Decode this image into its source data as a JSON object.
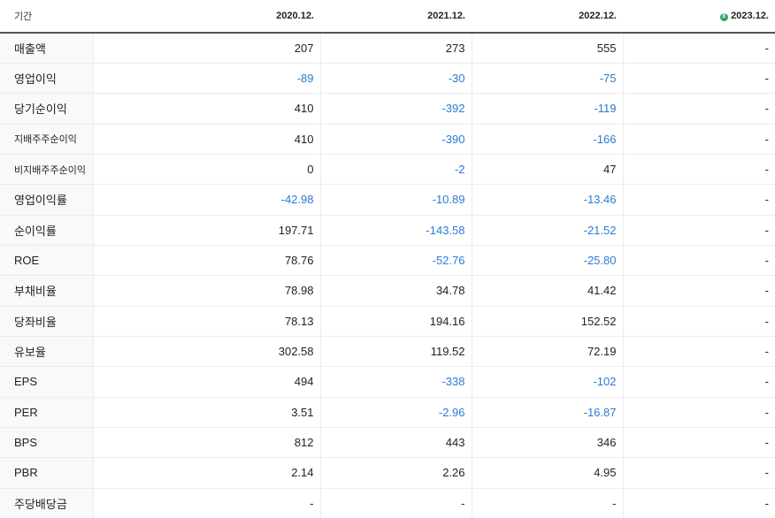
{
  "header": {
    "label": "기간",
    "periods": [
      "2020.12.",
      "2021.12.",
      "2022.12.",
      "2023.12."
    ],
    "estimate_icon_letter": "E",
    "estimate_icon_color": "#2aa86a"
  },
  "colors": {
    "negative": "#2b7bd3",
    "text": "#222222",
    "label_bg": "#f9f9f9"
  },
  "rows": [
    {
      "label": "매출액",
      "values": [
        "207",
        "273",
        "555",
        "-"
      ]
    },
    {
      "label": "영업이익",
      "values": [
        "-89",
        "-30",
        "-75",
        "-"
      ]
    },
    {
      "label": "당기순이익",
      "values": [
        "410",
        "-392",
        "-119",
        "-"
      ]
    },
    {
      "label": "지배주주순이익",
      "values": [
        "410",
        "-390",
        "-166",
        "-"
      ]
    },
    {
      "label": "비지배주주순이익",
      "values": [
        "0",
        "-2",
        "47",
        "-"
      ]
    },
    {
      "label": "영업이익률",
      "values": [
        "-42.98",
        "-10.89",
        "-13.46",
        "-"
      ]
    },
    {
      "label": "순이익률",
      "values": [
        "197.71",
        "-143.58",
        "-21.52",
        "-"
      ]
    },
    {
      "label": "ROE",
      "values": [
        "78.76",
        "-52.76",
        "-25.80",
        "-"
      ]
    },
    {
      "label": "부채비율",
      "values": [
        "78.98",
        "34.78",
        "41.42",
        "-"
      ]
    },
    {
      "label": "당좌비율",
      "values": [
        "78.13",
        "194.16",
        "152.52",
        "-"
      ]
    },
    {
      "label": "유보율",
      "values": [
        "302.58",
        "119.52",
        "72.19",
        "-"
      ]
    },
    {
      "label": "EPS",
      "values": [
        "494",
        "-338",
        "-102",
        "-"
      ]
    },
    {
      "label": "PER",
      "values": [
        "3.51",
        "-2.96",
        "-16.87",
        "-"
      ]
    },
    {
      "label": "BPS",
      "values": [
        "812",
        "443",
        "346",
        "-"
      ]
    },
    {
      "label": "PBR",
      "values": [
        "2.14",
        "2.26",
        "4.95",
        "-"
      ]
    },
    {
      "label": "주당배당금",
      "values": [
        "-",
        "-",
        "-",
        "-"
      ]
    }
  ]
}
